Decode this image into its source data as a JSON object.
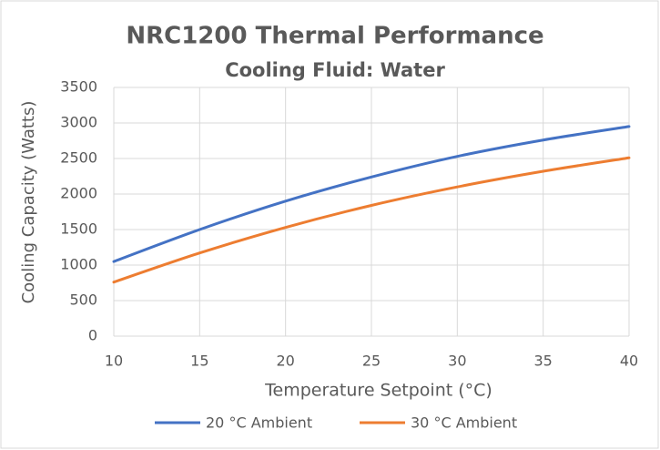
{
  "chart_data": {
    "type": "line",
    "title": "NRC1200 Thermal Performance",
    "subtitle": "Cooling Fluid: Water",
    "x_label": "Temperature Setpoint (°C)",
    "y_label": "Cooling Capacity (Watts)",
    "x": [
      10,
      15,
      20,
      25,
      30,
      35,
      40
    ],
    "series": [
      {
        "name": "20 °C Ambient",
        "color": "#4472c4",
        "values": [
          1050,
          1500,
          1900,
          2240,
          2530,
          2760,
          2950
        ]
      },
      {
        "name": "30 °C Ambient",
        "color": "#ed7d31",
        "values": [
          760,
          1170,
          1530,
          1840,
          2100,
          2320,
          2510
        ]
      }
    ],
    "xlim": [
      10,
      40
    ],
    "xticks": [
      10,
      15,
      20,
      25,
      30,
      35,
      40
    ],
    "ylim": [
      0,
      3500
    ],
    "yticks": [
      0,
      500,
      1000,
      1500,
      2000,
      2500,
      3000,
      3500
    ],
    "grid": true,
    "legend": "bottom"
  }
}
